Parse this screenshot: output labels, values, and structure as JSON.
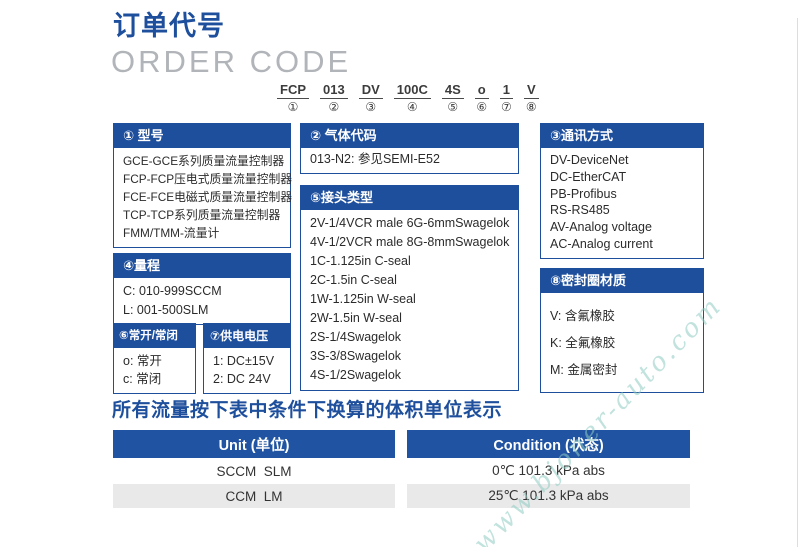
{
  "header": {
    "title_cn": "订单代号",
    "title_en": "ORDER CODE"
  },
  "order_code": {
    "segments": [
      {
        "code": "FCP",
        "index": "①"
      },
      {
        "code": "013",
        "index": "②"
      },
      {
        "code": "DV",
        "index": "③"
      },
      {
        "code": "100C",
        "index": "④"
      },
      {
        "code": "4S",
        "index": "⑤"
      },
      {
        "code": "o",
        "index": "⑥"
      },
      {
        "code": "1",
        "index": "⑦"
      },
      {
        "code": "V",
        "index": "⑧"
      }
    ]
  },
  "boxes": {
    "model": {
      "title": "① 型号",
      "items": [
        "GCE-GCE系列质量流量控制器",
        "FCP-FCP压电式质量流量控制器",
        "FCE-FCE电磁式质量流量控制器",
        "TCP-TCP系列质量流量控制器",
        "FMM/TMM-流量计"
      ]
    },
    "gas_code": {
      "title": "② 气体代码",
      "items": [
        "013-N2: 参见SEMI-E52"
      ]
    },
    "communication": {
      "title": "③通讯方式",
      "items": [
        "DV-DeviceNet",
        "DC-EtherCAT",
        "PB-Profibus",
        "RS-RS485",
        "AV-Analog voltage",
        "AC-Analog current"
      ]
    },
    "range": {
      "title": "④量程",
      "items": [
        "C: 010-999SCCM",
        "L: 001-500SLM"
      ]
    },
    "fitting_type": {
      "title": "⑤接头类型",
      "items": [
        "2V-1/4VCR male 6G-6mmSwagelok",
        "4V-1/2VCR male 8G-8mmSwagelok",
        "1C-1.125in C-seal",
        "2C-1.5in C-seal",
        "1W-1.125in W-seal",
        "2W-1.5in W-seal",
        "2S-1/4Swagelok",
        "3S-3/8Swagelok",
        "4S-1/2Swagelok"
      ]
    },
    "normally_open_closed": {
      "title": "⑥常开/常闭",
      "items": [
        "o: 常开",
        "c: 常闭"
      ]
    },
    "supply_voltage": {
      "title": "⑦供电电压",
      "items": [
        "1: DC±15V",
        "2: DC 24V"
      ]
    },
    "seal_material": {
      "title": "⑧密封圈材质",
      "items": [
        "V: 含氟橡胶",
        "K: 全氟橡胶",
        "M: 金属密封"
      ]
    }
  },
  "conversion": {
    "note": "所有流量按下表中条件下换算的体积单位表示",
    "table": {
      "columns": [
        "Unit (单位)",
        "Condition (状态)"
      ],
      "rows": [
        [
          "SCCM  SLM",
          "0℃ 101.3 kPa abs"
        ],
        [
          "CCM  LM",
          "25℃ 101.3 kPa abs"
        ]
      ]
    }
  },
  "watermark": {
    "text": "www.bjoner-auto.com"
  },
  "colors": {
    "primary_blue": "#1e4f9c",
    "table_blue": "#2054a2",
    "subtitle_gray": "#b1b4b8",
    "row_alt": "#e9e9ea",
    "wm": "#8fccc2"
  }
}
